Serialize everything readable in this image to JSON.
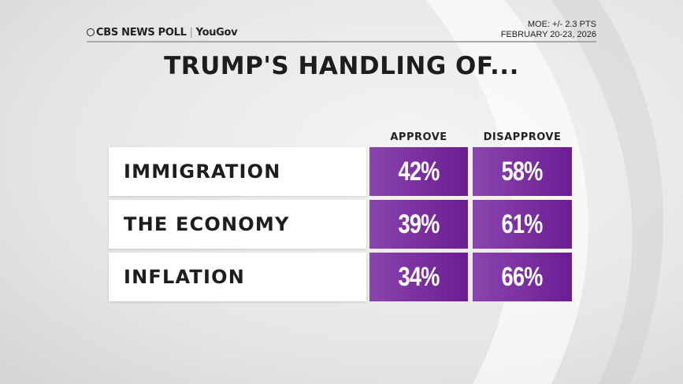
{
  "header": {
    "logo_text": "CBS NEWS POLL",
    "logo_partner": "YouGov",
    "moe": "MOE: +/- 2.3 PTS",
    "dates": "FEBRUARY 20-23, 2026"
  },
  "title": "TRUMP'S HANDLING OF...",
  "colors": {
    "cell_purple": "#7a2fa0",
    "label_bg": "#ffffff"
  },
  "chart_data": {
    "type": "table",
    "title": "TRUMP'S HANDLING OF...",
    "columns": [
      "APPROVE",
      "DISAPPROVE"
    ],
    "rows": [
      {
        "label": "IMMIGRATION",
        "values": [
          "42%",
          "58%"
        ]
      },
      {
        "label": "THE ECONOMY",
        "values": [
          "39%",
          "61%"
        ]
      },
      {
        "label": "INFLATION",
        "values": [
          "34%",
          "66%"
        ]
      }
    ]
  }
}
